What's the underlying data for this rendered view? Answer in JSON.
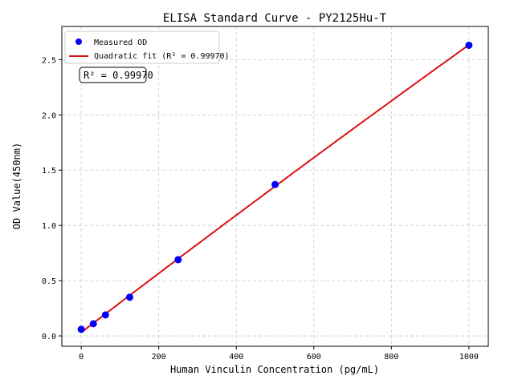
{
  "chart_data": {
    "type": "scatter",
    "title": "ELISA Standard Curve - PY2125Hu-T",
    "xlabel": "Human Vinculin Concentration (pg/mL)",
    "ylabel": "OD Value(450nm)",
    "xlim": [
      -50,
      1050
    ],
    "ylim": [
      -0.094,
      2.8
    ],
    "xticks": [
      0,
      200,
      400,
      600,
      800,
      1000
    ],
    "yticks": [
      0.0,
      0.5,
      1.0,
      1.5,
      2.0,
      2.5
    ],
    "ytick_labels": [
      "0.0",
      "0.5",
      "1.0",
      "1.5",
      "2.0",
      "2.5"
    ],
    "grid": true,
    "legend_position": "top-left",
    "series": [
      {
        "name": "Measured OD",
        "kind": "scatter",
        "color": "#0000ff",
        "x": [
          0,
          31.25,
          62.5,
          125,
          250,
          500,
          1000
        ],
        "y": [
          0.06,
          0.11,
          0.19,
          0.35,
          0.69,
          1.37,
          2.63
        ]
      },
      {
        "name": "Quadratic fit (R² = 0.99970)",
        "kind": "line",
        "color": "#dd1111"
      }
    ],
    "annotation": "R² = 0.99970"
  }
}
